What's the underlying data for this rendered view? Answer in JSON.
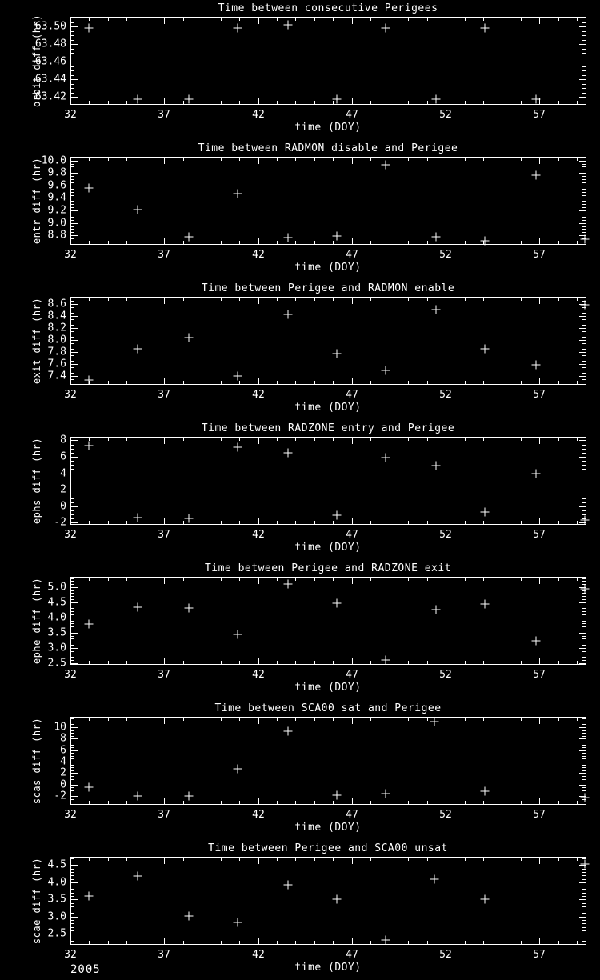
{
  "page": {
    "background": "#000000",
    "foreground": "#ffffff",
    "year_label": "2005"
  },
  "chart_data": [
    {
      "type": "scatter",
      "title": "Time between consecutive Perigees",
      "ylabel": "orbit_diff (hr)",
      "xlabel": "time (DOY)",
      "marker": "+",
      "grid": false,
      "xlim": [
        32,
        59.5
      ],
      "xticks": [
        32,
        37,
        42,
        47,
        52,
        57
      ],
      "x_minor_step": 1,
      "ylim": [
        63.411,
        63.511
      ],
      "ytick_labels": [
        "63.42",
        "63.44",
        "63.46",
        "63.48",
        "63.50"
      ],
      "ytick_values": [
        63.42,
        63.44,
        63.46,
        63.48,
        63.5
      ],
      "y_minor_step": 0.005,
      "x": [
        33.0,
        35.6,
        38.3,
        40.9,
        43.6,
        46.2,
        48.8,
        51.5,
        54.1,
        56.8
      ],
      "y": [
        63.498,
        63.417,
        63.417,
        63.498,
        63.502,
        63.417,
        63.498,
        63.417,
        63.498,
        63.417
      ]
    },
    {
      "type": "scatter",
      "title": "Time between RADMON disable and Perigee",
      "ylabel": "entr_diff (hr)",
      "xlabel": "time (DOY)",
      "marker": "+",
      "grid": false,
      "xlim": [
        32,
        59.5
      ],
      "xticks": [
        32,
        37,
        42,
        47,
        52,
        57
      ],
      "x_minor_step": 1,
      "ylim": [
        8.65,
        10.06
      ],
      "ytick_labels": [
        "8.8",
        "9.0",
        "9.2",
        "9.4",
        "9.6",
        "9.8",
        "10.0"
      ],
      "ytick_values": [
        8.8,
        9.0,
        9.2,
        9.4,
        9.6,
        9.8,
        10.0
      ],
      "y_minor_step": 0.05,
      "x": [
        33.0,
        35.6,
        38.3,
        40.9,
        43.6,
        46.2,
        48.8,
        51.5,
        54.1,
        56.8,
        59.4
      ],
      "y": [
        9.56,
        9.22,
        8.78,
        9.47,
        8.77,
        8.79,
        9.93,
        8.78,
        8.72,
        9.76,
        8.74
      ]
    },
    {
      "type": "scatter",
      "title": "Time between Perigee and RADMON enable",
      "ylabel": "exit_diff (hr)",
      "xlabel": "time (DOY)",
      "marker": "+",
      "grid": false,
      "xlim": [
        32,
        59.5
      ],
      "xticks": [
        32,
        37,
        42,
        47,
        52,
        57
      ],
      "x_minor_step": 1,
      "ylim": [
        7.25,
        8.72
      ],
      "ytick_labels": [
        "7.4",
        "7.6",
        "7.8",
        "8.0",
        "8.2",
        "8.4",
        "8.6"
      ],
      "ytick_values": [
        7.4,
        7.6,
        7.8,
        8.0,
        8.2,
        8.4,
        8.6
      ],
      "y_minor_step": 0.05,
      "x": [
        33.0,
        35.6,
        38.3,
        40.9,
        43.6,
        46.2,
        48.8,
        51.5,
        54.1,
        56.8,
        59.4
      ],
      "y": [
        7.33,
        7.85,
        8.04,
        7.4,
        8.42,
        7.77,
        7.49,
        8.5,
        7.85,
        7.59,
        8.59
      ]
    },
    {
      "type": "scatter",
      "title": "Time between RADZONE entry and Perigee",
      "ylabel": "ephs_diff (hr)",
      "xlabel": "time (DOY)",
      "marker": "+",
      "grid": false,
      "xlim": [
        32,
        59.5
      ],
      "xticks": [
        32,
        37,
        42,
        47,
        52,
        57
      ],
      "x_minor_step": 1,
      "ylim": [
        -2.25,
        8.43
      ],
      "ytick_labels": [
        "-2",
        "0",
        "2",
        "4",
        "6",
        "8"
      ],
      "ytick_values": [
        -2,
        0,
        2,
        4,
        6,
        8
      ],
      "y_minor_step": 0.5,
      "x": [
        33.0,
        35.6,
        38.3,
        40.9,
        43.6,
        46.2,
        48.8,
        51.5,
        54.1,
        56.8,
        59.4
      ],
      "y": [
        7.4,
        -1.4,
        -1.5,
        7.2,
        6.45,
        -1.1,
        5.9,
        4.9,
        -0.7,
        4.0,
        -1.7
      ]
    },
    {
      "type": "scatter",
      "title": "Time between Perigee and RADZONE exit",
      "ylabel": "ephe_diff (hr)",
      "xlabel": "time (DOY)",
      "marker": "+",
      "grid": false,
      "xlim": [
        32,
        59.5
      ],
      "xticks": [
        32,
        37,
        42,
        47,
        52,
        57
      ],
      "x_minor_step": 1,
      "ylim": [
        2.44,
        5.34
      ],
      "ytick_labels": [
        "2.5",
        "3.0",
        "3.5",
        "4.0",
        "4.5",
        "5.0"
      ],
      "ytick_values": [
        2.5,
        3.0,
        3.5,
        4.0,
        4.5,
        5.0
      ],
      "y_minor_step": 0.1,
      "x": [
        33.0,
        35.6,
        38.3,
        40.9,
        43.6,
        46.2,
        48.8,
        51.5,
        54.1,
        56.8,
        59.4
      ],
      "y": [
        3.78,
        4.35,
        4.32,
        3.45,
        5.09,
        4.48,
        2.59,
        4.26,
        4.44,
        3.22,
        4.95
      ]
    },
    {
      "type": "scatter",
      "title": "Time between SCA00 sat and Perigee",
      "ylabel": "scas_diff (hr)",
      "xlabel": "time (DOY)",
      "marker": "+",
      "grid": false,
      "xlim": [
        32,
        59.5
      ],
      "xticks": [
        32,
        37,
        42,
        47,
        52,
        57
      ],
      "x_minor_step": 1,
      "ylim": [
        -3.5,
        11.8
      ],
      "ytick_labels": [
        "-2",
        "0",
        "2",
        "4",
        "6",
        "8",
        "10"
      ],
      "ytick_values": [
        -2,
        0,
        2,
        4,
        6,
        8,
        10
      ],
      "y_minor_step": 0.5,
      "x": [
        33.0,
        35.6,
        38.3,
        40.9,
        43.6,
        46.2,
        48.8,
        51.4,
        54.1,
        59.4
      ],
      "y": [
        -0.5,
        -1.95,
        -1.95,
        2.8,
        9.3,
        -1.8,
        -1.6,
        10.9,
        -1.15,
        -2.3
      ]
    },
    {
      "type": "scatter",
      "title": "Time between Perigee and SCA00 unsat",
      "ylabel": "scae_diff (hr)",
      "xlabel": "time (DOY)",
      "marker": "+",
      "grid": false,
      "xlim": [
        32,
        59.5
      ],
      "xticks": [
        32,
        37,
        42,
        47,
        52,
        57
      ],
      "x_minor_step": 1,
      "ylim": [
        2.18,
        4.74
      ],
      "ytick_labels": [
        "2.5",
        "3.0",
        "3.5",
        "4.0",
        "4.5"
      ],
      "ytick_values": [
        2.5,
        3.0,
        3.5,
        4.0,
        4.5
      ],
      "y_minor_step": 0.1,
      "x": [
        33.0,
        35.6,
        38.3,
        40.9,
        43.6,
        46.2,
        48.8,
        51.4,
        54.1,
        59.4
      ],
      "y": [
        3.61,
        4.17,
        3.01,
        2.83,
        3.92,
        3.5,
        2.33,
        4.1,
        3.5,
        4.52
      ]
    }
  ]
}
